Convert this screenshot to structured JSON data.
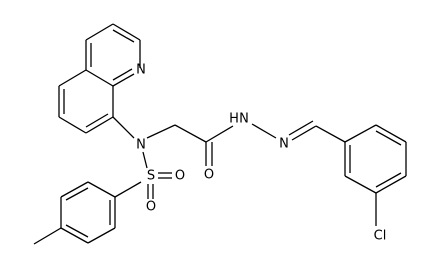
{
  "atoms": [
    {
      "label": "N"
    },
    {
      "label": "N"
    },
    {
      "label": "S"
    },
    {
      "label": "O"
    },
    {
      "label": "O"
    },
    {
      "label": "O"
    },
    {
      "label": "H"
    },
    {
      "label": "N"
    },
    {
      "label": "N"
    },
    {
      "label": "Cl"
    }
  ]
}
